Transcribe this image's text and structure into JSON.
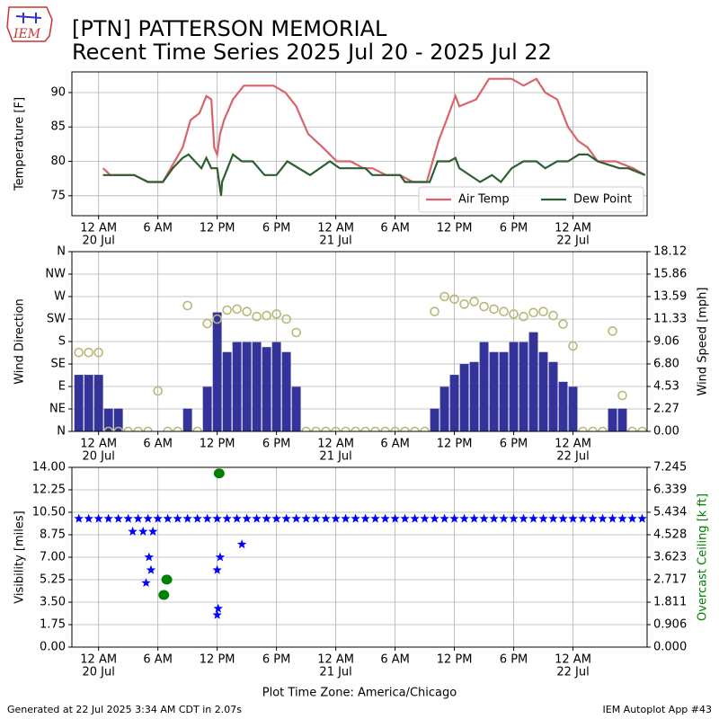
{
  "header": {
    "title": "[PTN] PATTERSON MEMORIAL",
    "subtitle": "Recent Time Series 2025 Jul 20 - 2025 Jul 22",
    "logo": "IEM"
  },
  "footer": {
    "left": "Generated at 22 Jul 2025 3:34 AM CDT in 2.07s",
    "right": "IEM Autoplot App #43"
  },
  "chart_data": [
    {
      "type": "line",
      "ylabel": "Temperature [F]",
      "xlim": [
        -2.7,
        55.5
      ],
      "xticks": [
        {
          "value": 0,
          "label": "12 AM",
          "date": "20 Jul"
        },
        {
          "value": 6,
          "label": "6 AM"
        },
        {
          "value": 12,
          "label": "12 PM"
        },
        {
          "value": 18,
          "label": "6 PM"
        },
        {
          "value": 24,
          "label": "12 AM",
          "date": "21 Jul"
        },
        {
          "value": 30,
          "label": "6 AM"
        },
        {
          "value": 36,
          "label": "12 PM"
        },
        {
          "value": 42,
          "label": "6 PM"
        },
        {
          "value": 48,
          "label": "12 AM",
          "date": "22 Jul"
        }
      ],
      "ylim": [
        72.1,
        93
      ],
      "yticks": [
        75,
        80,
        85,
        90
      ],
      "grid": true,
      "legend": "lower right",
      "series": [
        {
          "name": "Air Temp",
          "type": "line",
          "color": "#d9636b",
          "x": [
            0.45,
            1.2,
            3.6,
            5,
            6.5,
            7.7,
            8.5,
            9.3,
            10.2,
            10.9,
            11.4,
            11.7,
            12,
            12.3,
            12.7,
            13.6,
            14.7,
            15.9,
            17.7,
            18.9,
            20,
            21.2,
            22.7,
            24.1,
            25.5,
            26.8,
            27.7,
            29.1,
            30.5,
            31.8,
            33.2,
            34.4,
            35.2,
            36.1,
            36.5,
            38.2,
            39.5,
            41.8,
            43,
            44.3,
            45.2,
            46.4,
            47.5,
            48.5,
            49.5,
            50.5,
            52.3,
            54.1,
            55.3
          ],
          "values": [
            79,
            78,
            78,
            77,
            77,
            80,
            82,
            86,
            87,
            89.5,
            89,
            82,
            81,
            84,
            86,
            89,
            91,
            91,
            91,
            90,
            88,
            84,
            82,
            80,
            80,
            79,
            79,
            78,
            78,
            77,
            77,
            83,
            86,
            89.5,
            88,
            89,
            92,
            92,
            91,
            92,
            90,
            89,
            85,
            83,
            82,
            80,
            80,
            79,
            78
          ]
        },
        {
          "name": "Dew Point",
          "type": "line",
          "color": "#2e5e30",
          "x": [
            0.45,
            3.6,
            5,
            6.5,
            7.5,
            8.5,
            9.1,
            10.4,
            10.9,
            11.4,
            12,
            12.4,
            12.5,
            13.6,
            14.5,
            15.6,
            16.8,
            18,
            19.1,
            21.4,
            23.4,
            24.4,
            27,
            27.7,
            30.5,
            31,
            33.5,
            34.3,
            35.5,
            36.1,
            36.5,
            38.6,
            39.8,
            40.7,
            41.8,
            43,
            44.3,
            45.2,
            46.4,
            47.5,
            48.6,
            49.5,
            50.5,
            52.7,
            53.6,
            55.3
          ],
          "values": [
            78,
            78,
            77,
            77,
            79,
            80.5,
            81,
            79,
            80.5,
            79,
            79,
            75,
            77,
            81,
            80,
            80,
            78,
            78,
            80,
            78,
            80,
            79,
            79,
            78,
            78,
            77,
            77,
            80,
            80,
            80.5,
            79,
            77,
            78,
            77,
            79,
            80,
            80,
            79,
            80,
            80,
            81,
            81,
            80,
            79,
            79,
            78
          ]
        }
      ]
    },
    {
      "type": "combo",
      "ylabel": "Wind Direction",
      "y2label": "Wind Speed [mph]",
      "xlim": [
        -2.7,
        55.5
      ],
      "xticks": [
        {
          "value": 0,
          "label": "12 AM",
          "date": "20 Jul"
        },
        {
          "value": 6,
          "label": "6 AM"
        },
        {
          "value": 12,
          "label": "12 PM"
        },
        {
          "value": 18,
          "label": "6 PM"
        },
        {
          "value": 24,
          "label": "12 AM",
          "date": "21 Jul"
        },
        {
          "value": 30,
          "label": "6 AM"
        },
        {
          "value": 36,
          "label": "12 PM"
        },
        {
          "value": 42,
          "label": "6 PM"
        },
        {
          "value": 48,
          "label": "12 AM",
          "date": "22 Jul"
        }
      ],
      "ylim": [
        0,
        360
      ],
      "yticks": [
        {
          "value": 0,
          "label": "N"
        },
        {
          "value": 45,
          "label": "NE"
        },
        {
          "value": 90,
          "label": "E"
        },
        {
          "value": 135,
          "label": "SE"
        },
        {
          "value": 180,
          "label": "S"
        },
        {
          "value": 225,
          "label": "SW"
        },
        {
          "value": 270,
          "label": "W"
        },
        {
          "value": 315,
          "label": "NW"
        },
        {
          "value": 360,
          "label": "N"
        }
      ],
      "y2lim": [
        0,
        18.12
      ],
      "y2ticks": [
        {
          "value": 0,
          "label": "0.00"
        },
        {
          "value": 2.27,
          "label": "2.27"
        },
        {
          "value": 4.53,
          "label": "4.53"
        },
        {
          "value": 6.8,
          "label": "6.80"
        },
        {
          "value": 9.06,
          "label": "9.06"
        },
        {
          "value": 11.33,
          "label": "11.33"
        },
        {
          "value": 13.59,
          "label": "13.59"
        },
        {
          "value": 15.86,
          "label": "15.86"
        },
        {
          "value": 18.12,
          "label": "18.12"
        }
      ],
      "grid": true,
      "series": [
        {
          "name": "Wind Speed",
          "type": "bar",
          "axis": "y2",
          "color": "#333399",
          "x": [
            -2,
            -1,
            0,
            1,
            2,
            3,
            4,
            5,
            6,
            7,
            8,
            9,
            10,
            11,
            12,
            13,
            14,
            15,
            16,
            17,
            18,
            19,
            20,
            21,
            22,
            23,
            24,
            25,
            26,
            27,
            28,
            29,
            30,
            31,
            32,
            33,
            34,
            35,
            36,
            37,
            38,
            39,
            40,
            41,
            42,
            43,
            44,
            45,
            46,
            47,
            48,
            49,
            50,
            51,
            52,
            53,
            54,
            55
          ],
          "values": [
            5.7,
            5.7,
            5.7,
            2.3,
            2.3,
            0,
            0,
            0,
            0,
            0,
            0,
            2.3,
            0,
            4.5,
            12,
            8,
            9,
            9,
            9,
            8.5,
            9,
            8,
            4.5,
            0,
            0,
            0,
            0,
            0,
            0,
            0,
            0,
            0,
            0,
            0,
            0,
            0,
            2.3,
            4.5,
            5.7,
            6.8,
            7,
            9,
            8,
            8,
            9,
            9,
            10,
            8,
            7,
            5,
            4.5,
            0,
            0,
            0,
            2.3,
            2.3,
            0,
            0
          ]
        },
        {
          "name": "Wind Direction",
          "type": "scatter",
          "marker": "circle",
          "color": "#b8b878",
          "x": [
            -2,
            -1,
            0,
            1,
            2,
            3,
            4,
            5,
            6,
            7,
            8,
            9,
            10,
            11,
            12,
            13,
            14,
            15,
            16,
            17,
            18,
            19,
            20,
            21,
            22,
            23,
            24,
            25,
            26,
            27,
            28,
            29,
            30,
            31,
            32,
            33,
            34,
            35,
            36,
            37,
            38,
            39,
            40,
            41,
            42,
            43,
            44,
            45,
            46,
            47,
            48,
            49,
            50,
            51,
            52,
            53,
            54,
            55
          ],
          "values": [
            158,
            158,
            158,
            0,
            0,
            0,
            0,
            0,
            81,
            0,
            0,
            252,
            0,
            216,
            225,
            243,
            245,
            240,
            230,
            232,
            235,
            225,
            198,
            0,
            0,
            0,
            0,
            0,
            0,
            0,
            0,
            0,
            0,
            0,
            0,
            0,
            240,
            270,
            265,
            255,
            260,
            250,
            245,
            240,
            235,
            230,
            238,
            240,
            232,
            215,
            171,
            0,
            0,
            0,
            201,
            72,
            0,
            0
          ]
        }
      ]
    },
    {
      "type": "scatter",
      "ylabel": "Visibility [miles]",
      "y2label": "Overcast Ceiling [k ft]",
      "y2color": "#008000",
      "xlabel": "Plot Time Zone: America/Chicago",
      "xlim": [
        -2.7,
        55.5
      ],
      "xticks": [
        {
          "value": 0,
          "label": "12 AM",
          "date": "20 Jul"
        },
        {
          "value": 6,
          "label": "6 AM"
        },
        {
          "value": 12,
          "label": "12 PM"
        },
        {
          "value": 18,
          "label": "6 PM"
        },
        {
          "value": 24,
          "label": "12 AM",
          "date": "21 Jul"
        },
        {
          "value": 30,
          "label": "6 AM"
        },
        {
          "value": 36,
          "label": "12 PM"
        },
        {
          "value": 42,
          "label": "6 PM"
        },
        {
          "value": 48,
          "label": "12 AM",
          "date": "22 Jul"
        }
      ],
      "ylim": [
        0,
        14
      ],
      "yticks": [
        {
          "value": 0,
          "label": "0.00"
        },
        {
          "value": 1.75,
          "label": "1.75"
        },
        {
          "value": 3.5,
          "label": "3.50"
        },
        {
          "value": 5.25,
          "label": "5.25"
        },
        {
          "value": 7,
          "label": "7.00"
        },
        {
          "value": 8.75,
          "label": "8.75"
        },
        {
          "value": 10.5,
          "label": "10.50"
        },
        {
          "value": 12.25,
          "label": "12.25"
        },
        {
          "value": 14,
          "label": "14.00"
        }
      ],
      "y2lim": [
        0,
        7.245
      ],
      "y2ticks": [
        {
          "value": 0,
          "label": "0.000"
        },
        {
          "value": 0.906,
          "label": "0.906"
        },
        {
          "value": 1.811,
          "label": "1.811"
        },
        {
          "value": 2.717,
          "label": "2.717"
        },
        {
          "value": 3.623,
          "label": "3.623"
        },
        {
          "value": 4.528,
          "label": "4.528"
        },
        {
          "value": 5.434,
          "label": "5.434"
        },
        {
          "value": 6.339,
          "label": "6.339"
        },
        {
          "value": 7.245,
          "label": "7.245"
        }
      ],
      "grid": true,
      "series": [
        {
          "name": "Visibility",
          "type": "scatter",
          "marker": "star",
          "color": "#0000ff",
          "x": [
            -2,
            -1,
            0,
            1,
            2,
            3,
            4,
            5,
            6,
            7,
            8,
            9,
            10,
            11,
            12,
            13,
            14,
            15,
            16,
            17,
            18,
            19,
            20,
            21,
            22,
            23,
            24,
            25,
            26,
            27,
            28,
            29,
            30,
            31,
            32,
            33,
            34,
            35,
            36,
            37,
            38,
            39,
            40,
            41,
            42,
            43,
            44,
            45,
            46,
            47,
            48,
            49,
            50,
            51,
            52,
            53,
            54,
            55,
            3.45,
            4.5,
            4.8,
            5.1,
            5.3,
            5.5,
            12,
            12.3,
            12.1,
            12,
            14.5
          ],
          "values": [
            10,
            10,
            10,
            10,
            10,
            10,
            10,
            10,
            10,
            10,
            10,
            10,
            10,
            10,
            10,
            10,
            10,
            10,
            10,
            10,
            10,
            10,
            10,
            10,
            10,
            10,
            10,
            10,
            10,
            10,
            10,
            10,
            10,
            10,
            10,
            10,
            10,
            10,
            10,
            10,
            10,
            10,
            10,
            10,
            10,
            10,
            10,
            10,
            10,
            10,
            10,
            10,
            10,
            10,
            10,
            10,
            10,
            10,
            9,
            9,
            5,
            7,
            6,
            9,
            6,
            7,
            3,
            2.5,
            8
          ]
        },
        {
          "name": "Overcast Ceiling",
          "type": "scatter",
          "marker": "dot",
          "axis": "y2",
          "color": "#008000",
          "x": [
            12.2,
            6.9,
            6.6
          ],
          "values": [
            7.0,
            2.72,
            2.1
          ]
        }
      ]
    }
  ]
}
